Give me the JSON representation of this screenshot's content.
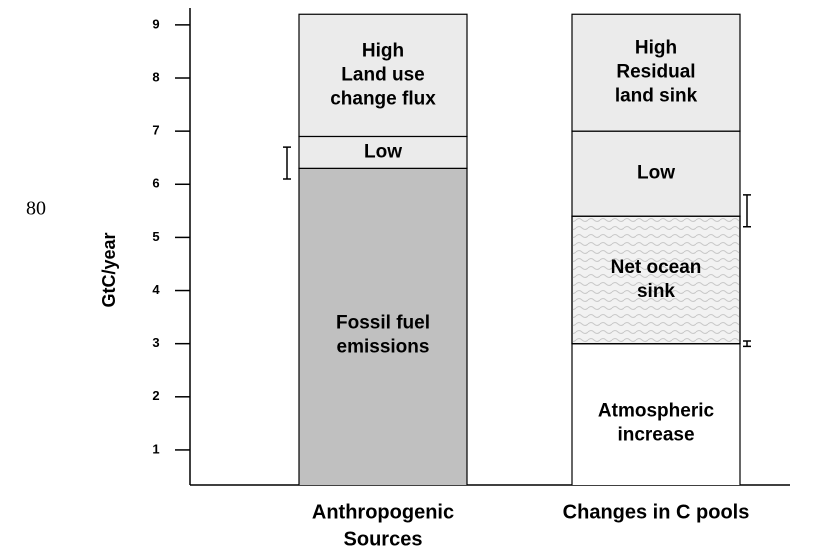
{
  "chart_data": {
    "type": "stacked-bar",
    "y_label": "GtC/year",
    "annotation": "80",
    "ylim": [
      0.34,
      9.28
    ],
    "yticks": [
      1,
      2,
      3,
      4,
      5,
      6,
      7,
      8,
      9
    ],
    "bars": [
      {
        "category": [
          "Anthropogenic",
          "Sources"
        ],
        "segments": [
          {
            "label": [
              "Fossil fuel",
              "emissions"
            ],
            "value": 6.3,
            "color": "#c0c0c0"
          },
          {
            "label": [
              "Low"
            ],
            "value": 0.6,
            "color": "#ebebeb"
          },
          {
            "label": [
              "High",
              "Land use",
              "change flux"
            ],
            "value": 2.3,
            "color": "#ebebeb"
          }
        ],
        "errors": [
          {
            "value": 6.4,
            "error": 0.3
          }
        ]
      },
      {
        "category": [
          "Changes in C pools"
        ],
        "segments": [
          {
            "label": [
              "Atmospheric",
              "increase"
            ],
            "value": 3.0,
            "color": "#ffffff"
          },
          {
            "label": [
              "Net ocean",
              "sink"
            ],
            "value": 2.4,
            "color": "#f2f2f2",
            "pattern": "wave"
          },
          {
            "label": [
              "Low"
            ],
            "value": 1.6,
            "color": "#ebebeb"
          },
          {
            "label": [
              "High",
              "Residual",
              "land sink"
            ],
            "value": 2.2,
            "color": "#ebebeb"
          }
        ],
        "errors": [
          {
            "value": 5.5,
            "error": 0.3
          },
          {
            "value": 3.0,
            "error": 0.05
          }
        ]
      }
    ]
  }
}
